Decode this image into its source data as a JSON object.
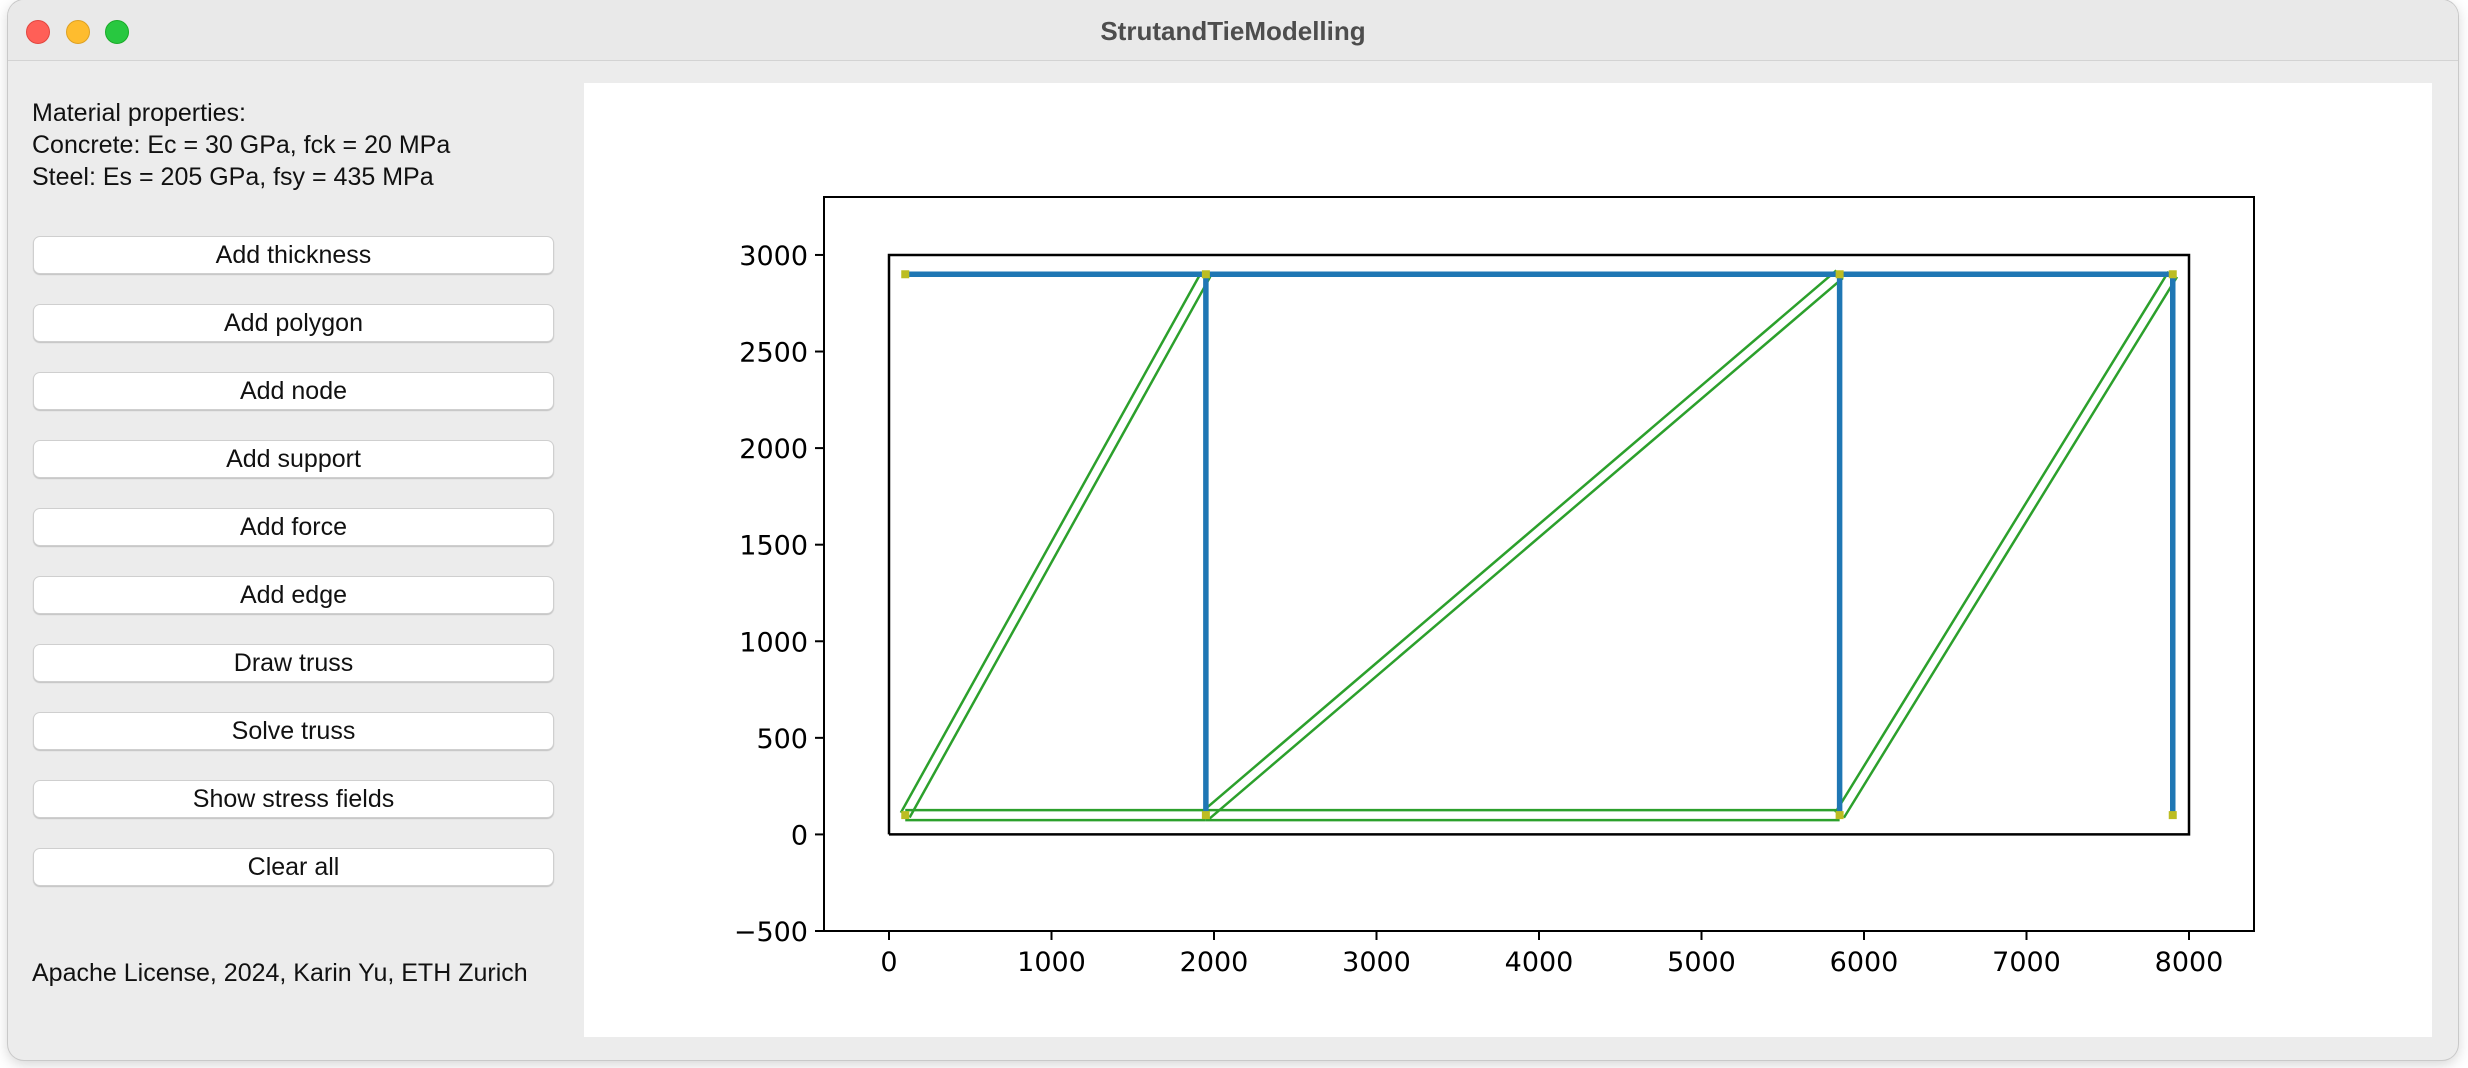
{
  "window": {
    "title": "StrutandTieModelling"
  },
  "sidebar": {
    "info": {
      "heading": "Material properties:",
      "concrete": "Concrete: Ec = 30 GPa, fck = 20 MPa",
      "steel": "Steel: Es = 205 GPa, fsy = 435 MPa"
    },
    "buttons": [
      {
        "label": "Add thickness"
      },
      {
        "label": "Add polygon"
      },
      {
        "label": "Add node"
      },
      {
        "label": "Add support"
      },
      {
        "label": "Add force"
      },
      {
        "label": "Add edge"
      },
      {
        "label": "Draw truss"
      },
      {
        "label": "Solve truss"
      },
      {
        "label": "Show stress fields"
      },
      {
        "label": "Clear all"
      }
    ],
    "footer": "Apache License, 2024, Karin Yu, ETH Zurich"
  },
  "chart_data": {
    "type": "line",
    "title": "",
    "xlabel": "",
    "ylabel": "",
    "xlim": [
      -400,
      8400
    ],
    "ylim": [
      -500,
      3300
    ],
    "xticks": [
      0,
      1000,
      2000,
      3000,
      4000,
      5000,
      6000,
      7000,
      8000
    ],
    "yticks": [
      -500,
      0,
      500,
      1000,
      1500,
      2000,
      2500,
      3000
    ],
    "grid": false,
    "colors": {
      "boundary": "#000000",
      "ties": "#1f77b4",
      "struts": "#2ca02c",
      "nodes": "#bcbd22"
    },
    "boundary": {
      "x": [
        0,
        8000,
        8000,
        0,
        0
      ],
      "y": [
        0,
        0,
        3000,
        3000,
        0
      ]
    },
    "ties": [
      {
        "x": [
          100,
          7900
        ],
        "y": [
          2900,
          2900
        ]
      },
      {
        "x": [
          1950,
          1950
        ],
        "y": [
          2900,
          100
        ]
      },
      {
        "x": [
          5850,
          5850
        ],
        "y": [
          2900,
          100
        ]
      },
      {
        "x": [
          7900,
          7900
        ],
        "y": [
          2900,
          100
        ]
      }
    ],
    "struts": [
      {
        "x1": 100,
        "y1": 100,
        "x2": 1950,
        "y2": 2900
      },
      {
        "x1": 100,
        "y1": 100,
        "x2": 1950,
        "y2": 100
      },
      {
        "x1": 1950,
        "y1": 100,
        "x2": 5850,
        "y2": 2900
      },
      {
        "x1": 1950,
        "y1": 100,
        "x2": 5850,
        "y2": 100
      },
      {
        "x1": 5850,
        "y1": 100,
        "x2": 7900,
        "y2": 2900
      }
    ],
    "nodes": [
      {
        "x": 100,
        "y": 100
      },
      {
        "x": 100,
        "y": 2900
      },
      {
        "x": 1950,
        "y": 100
      },
      {
        "x": 1950,
        "y": 2900
      },
      {
        "x": 5850,
        "y": 100
      },
      {
        "x": 5850,
        "y": 2900
      },
      {
        "x": 7900,
        "y": 100
      },
      {
        "x": 7900,
        "y": 2900
      }
    ]
  }
}
